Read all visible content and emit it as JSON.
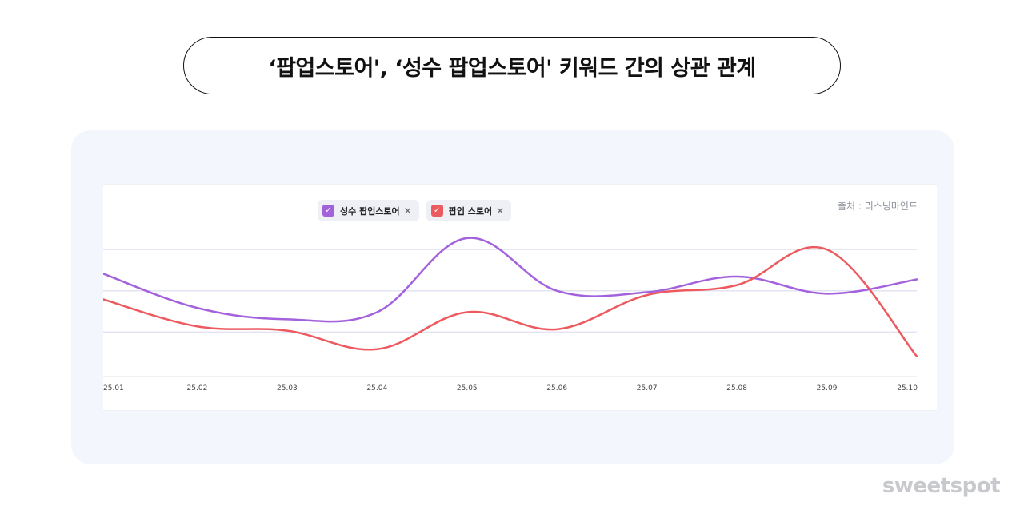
{
  "title": "‘팝업스토어', ‘성수 팝업스토어' 키워드 간의 상관 관계",
  "source": "출처 : 리스닝마인드",
  "watermark": "sweetspot",
  "legend": [
    {
      "label": "성수 팝업스토어",
      "color": "#a362dc",
      "check_icon": "check-icon",
      "close_icon": "close-icon"
    },
    {
      "label": "팝업 스토어",
      "color": "#ec5a5f",
      "check_icon": "check-icon",
      "close_icon": "close-icon"
    }
  ],
  "chart_data": {
    "type": "line",
    "x": [
      "25.01",
      "25.02",
      "25.03",
      "25.04",
      "25.05",
      "25.06",
      "25.07",
      "25.08",
      "25.09",
      "25.10"
    ],
    "ylim": [
      0,
      100
    ],
    "grid": true,
    "legend_position": "top-left",
    "series": [
      {
        "name": "성수 팝업스토어",
        "color": "#a362dc",
        "values": [
          70,
          46,
          38,
          43,
          95,
          58,
          57,
          68,
          56,
          66
        ]
      },
      {
        "name": "팝업 스토어",
        "color": "#ec5a5f",
        "values": [
          52,
          33,
          30,
          17,
          43,
          31,
          55,
          62,
          87,
          12
        ]
      }
    ]
  }
}
